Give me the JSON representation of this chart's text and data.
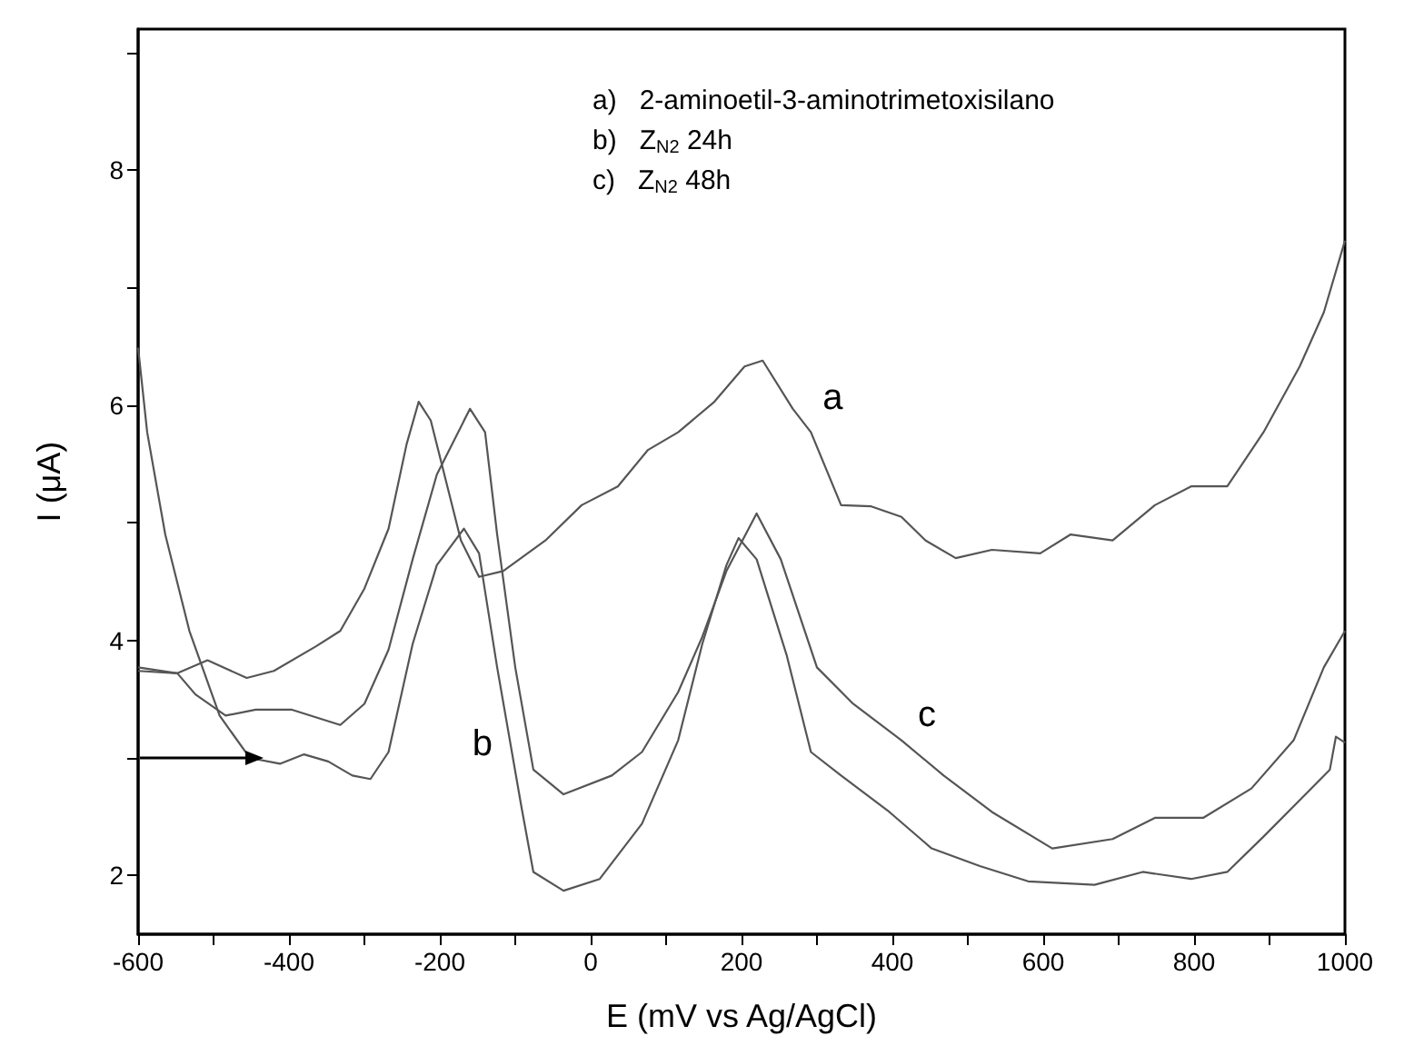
{
  "chart_data": {
    "type": "line",
    "xlabel": "E (mV vs Ag/AgCl)",
    "ylabel": "I (μA)",
    "xlim": [
      -600,
      1000
    ],
    "ylim": [
      1.5,
      9.2
    ],
    "xticks": [
      -600,
      {
        "value": -500,
        "label": null
      },
      -400,
      {
        "value": -300,
        "label": null
      },
      -200,
      {
        "value": -100,
        "label": null
      },
      0,
      {
        "value": 100,
        "label": null
      },
      200,
      {
        "value": 300,
        "label": null
      },
      400,
      {
        "value": 500,
        "label": null
      },
      600,
      {
        "value": 700,
        "label": null
      },
      800,
      {
        "value": 900,
        "label": null
      },
      1000
    ],
    "yticks": [
      2,
      {
        "value": 3,
        "label": null
      },
      4,
      {
        "value": 5,
        "label": null
      },
      6,
      {
        "value": 7,
        "label": null
      },
      8,
      {
        "value": 9,
        "label": null
      }
    ],
    "grid": false,
    "legend": false,
    "marker": "none",
    "line_style": "solid",
    "annotations": [
      "a)   2-aminoetil-3-aminotrimetoxisilano",
      "b)   Z$_{N2}$ 24h",
      "c)   Z$_{N2}$ 48h"
    ],
    "series": [
      {
        "name": "a",
        "color": "#555555",
        "x": [
          -600,
          -548,
          -508,
          -456,
          -420,
          -364,
          -332,
          -300,
          -268,
          -244,
          -228,
          -212,
          -192,
          -172,
          -148,
          -116,
          -60,
          -12,
          36,
          76,
          116,
          164,
          204,
          228,
          268,
          292,
          332,
          372,
          412,
          444,
          484,
          532,
          596,
          636,
          692,
          748,
          796,
          844,
          892,
          940,
          972,
          1000
        ],
        "values": [
          3.74,
          3.72,
          3.83,
          3.68,
          3.74,
          3.95,
          4.08,
          4.44,
          4.95,
          5.67,
          6.03,
          5.87,
          5.36,
          4.85,
          4.54,
          4.59,
          4.85,
          5.15,
          5.31,
          5.62,
          5.77,
          6.03,
          6.33,
          6.38,
          5.97,
          5.77,
          5.15,
          5.14,
          5.05,
          4.85,
          4.7,
          4.77,
          4.74,
          4.9,
          4.85,
          5.15,
          5.31,
          5.31,
          5.77,
          6.33,
          6.79,
          7.4
        ]
      },
      {
        "name": "b",
        "color": "#555555",
        "x": [
          -600,
          -588,
          -564,
          -532,
          -492,
          -452,
          -412,
          -380,
          -348,
          -316,
          -292,
          -268,
          -236,
          -204,
          -168,
          -148,
          -124,
          -92,
          -76,
          -36,
          12,
          68,
          116,
          148,
          180,
          196,
          220,
          260,
          292,
          332,
          396,
          452,
          516,
          580,
          668,
          732,
          796,
          844,
          892,
          940,
          980,
          988,
          1000
        ],
        "values": [
          6.49,
          5.77,
          4.9,
          4.08,
          3.36,
          3.0,
          2.95,
          3.03,
          2.97,
          2.85,
          2.82,
          3.05,
          3.97,
          4.64,
          4.95,
          4.74,
          3.77,
          2.59,
          2.03,
          1.87,
          1.97,
          2.44,
          3.15,
          3.97,
          4.64,
          4.87,
          4.69,
          3.87,
          3.05,
          2.85,
          2.54,
          2.23,
          2.08,
          1.95,
          1.92,
          2.03,
          1.97,
          2.03,
          2.33,
          2.64,
          2.9,
          3.18,
          3.13
        ]
      },
      {
        "name": "c",
        "color": "#555555",
        "x": [
          -600,
          -548,
          -524,
          -484,
          -444,
          -396,
          -332,
          -300,
          -268,
          -236,
          -204,
          -160,
          -140,
          -124,
          -100,
          -76,
          -36,
          28,
          68,
          116,
          148,
          180,
          220,
          252,
          300,
          348,
          412,
          468,
          532,
          612,
          692,
          748,
          812,
          876,
          932,
          972,
          1000
        ],
        "values": [
          3.77,
          3.72,
          3.54,
          3.36,
          3.41,
          3.41,
          3.28,
          3.46,
          3.92,
          4.69,
          5.41,
          5.97,
          5.77,
          4.9,
          3.77,
          2.9,
          2.69,
          2.85,
          3.05,
          3.56,
          4.03,
          4.59,
          5.08,
          4.69,
          3.77,
          3.46,
          3.15,
          2.85,
          2.54,
          2.23,
          2.31,
          2.49,
          2.49,
          2.74,
          3.15,
          3.77,
          4.08
        ]
      }
    ]
  }
}
